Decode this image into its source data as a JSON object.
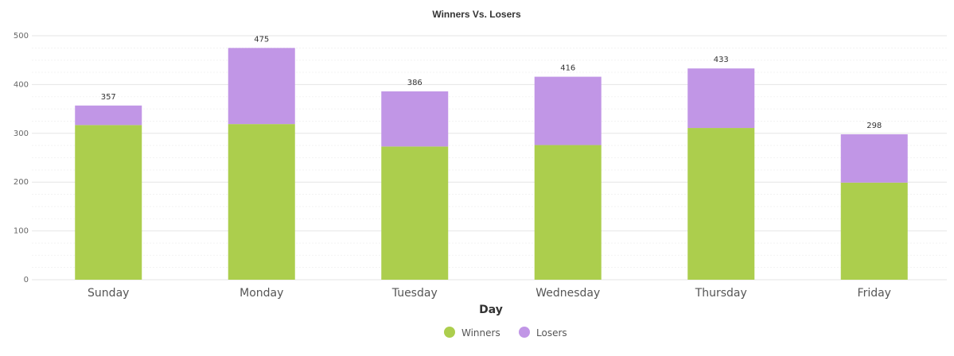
{
  "chart_data": {
    "type": "bar",
    "stacked": true,
    "title": "Winners Vs. Losers",
    "xlabel": "Day",
    "ylabel": "",
    "ylim": [
      0,
      500
    ],
    "yticks": [
      0,
      100,
      200,
      300,
      400,
      500
    ],
    "grid": true,
    "legend_position": "bottom-center",
    "categories": [
      "Sunday",
      "Monday",
      "Tuesday",
      "Wednesday",
      "Thursday",
      "Friday"
    ],
    "series": [
      {
        "name": "Winners",
        "color": "#acce4d",
        "values": [
          317,
          319,
          273,
          276,
          311,
          199
        ]
      },
      {
        "name": "Losers",
        "color": "#c196e6",
        "values": [
          40,
          156,
          113,
          140,
          122,
          99
        ]
      }
    ],
    "totals": [
      357,
      475,
      386,
      416,
      433,
      298
    ]
  }
}
